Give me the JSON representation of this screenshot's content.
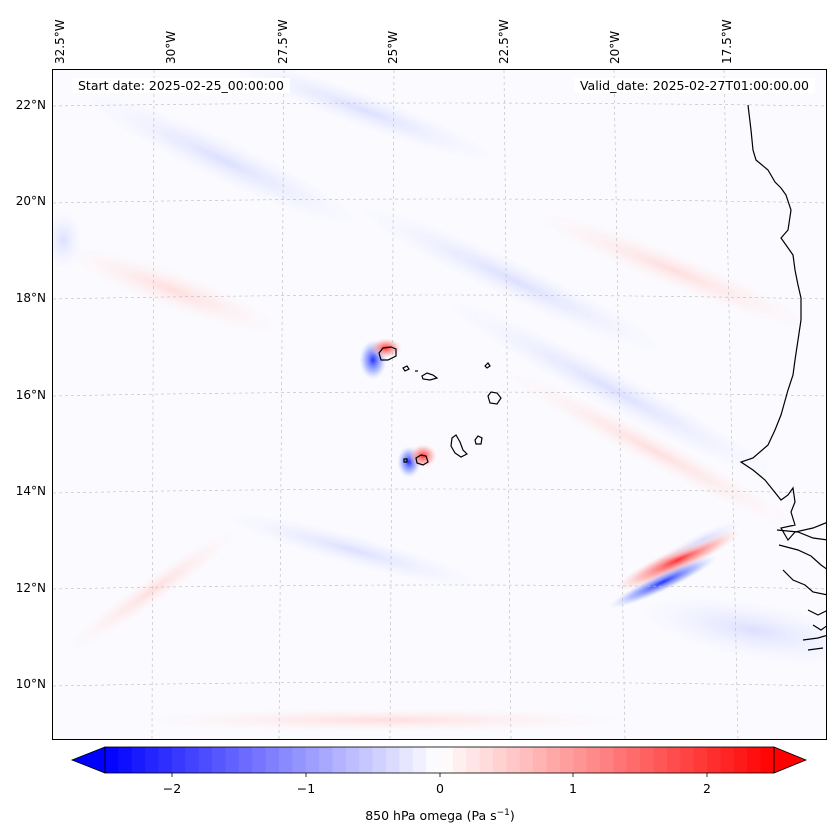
{
  "map": {
    "start_label": "Start date: 2025-02-25_00:00:00",
    "valid_label": "Valid_date: 2025-02-27T01:00:00.00",
    "lon_ticks": [
      "32.5°W",
      "30°W",
      "27.5°W",
      "25°W",
      "22.5°W",
      "20°W",
      "17.5°W"
    ],
    "lat_ticks": [
      "22°N",
      "20°N",
      "18°N",
      "16°N",
      "14°N",
      "12°N",
      "10°N"
    ],
    "gridlines": true,
    "coastline_color": "#000000"
  },
  "colorbar": {
    "label_text": "850 hPa omega (Pa s",
    "label_exponent": "−1",
    "label_close": ")",
    "ticks": [
      "−2",
      "−1",
      "0",
      "1",
      "2"
    ],
    "range": [
      -2.6,
      2.6
    ],
    "cmap": "bwr",
    "extend": "both",
    "colors": {
      "low": "#0000ff",
      "mid": "#ffffff",
      "high": "#ff0000"
    }
  }
}
